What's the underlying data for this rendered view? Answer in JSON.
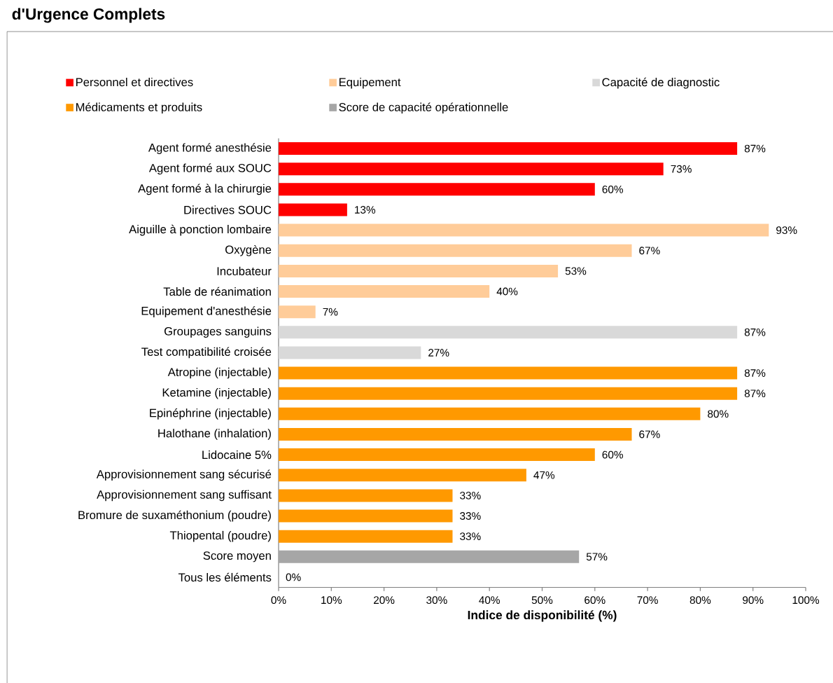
{
  "chart_data": {
    "type": "bar",
    "orientation": "horizontal",
    "title": "d'Urgence Complets",
    "xlabel": "Indice de disponibilité (%)",
    "legend": "top",
    "categories": [
      "Agent formé anesthésie",
      "Agent formé aux SOUC",
      "Agent formé à la chirurgie",
      "Directives SOUC",
      "Aiguille à ponction lombaire",
      "Oxygène",
      "Incubateur",
      "Table de réanimation",
      "Equipement d'anesthésie",
      "Groupages sanguins",
      "Test compatibilité croisée",
      "Atropine (injectable)",
      "Ketamine (injectable)",
      "Epinéphrine (injectable)",
      "Halothane (inhalation)",
      "Lidocaine 5%",
      "Approvisionnement sang sécurisé",
      "Approvisionnement sang suffisant",
      "Bromure de suxaméthonium (poudre)",
      "Thiopental (poudre)",
      "Score moyen",
      "Tous les éléments"
    ],
    "series": [
      {
        "name": "Personnel et directives",
        "color": "#ff0000",
        "values": [
          87,
          73,
          60,
          13,
          null,
          null,
          null,
          null,
          null,
          null,
          null,
          null,
          null,
          null,
          null,
          null,
          null,
          null,
          null,
          null,
          null,
          null
        ],
        "value_labels": [
          "87%",
          "73%",
          "60%",
          "13%",
          null,
          null,
          null,
          null,
          null,
          null,
          null,
          null,
          null,
          null,
          null,
          null,
          null,
          null,
          null,
          null,
          null,
          null
        ]
      },
      {
        "name": "Equipement",
        "color": "#ffcc99",
        "values": [
          null,
          null,
          null,
          null,
          93,
          67,
          53,
          40,
          7,
          null,
          null,
          null,
          null,
          null,
          null,
          null,
          null,
          null,
          null,
          null,
          null,
          null
        ],
        "value_labels": [
          null,
          null,
          null,
          null,
          "93%",
          "67%",
          "53%",
          "40%",
          "7%",
          null,
          null,
          null,
          null,
          null,
          null,
          null,
          null,
          null,
          null,
          null,
          null,
          null
        ]
      },
      {
        "name": "Capacité de diagnostic",
        "color": "#d9d9d9",
        "values": [
          null,
          null,
          null,
          null,
          null,
          null,
          null,
          null,
          null,
          87,
          27,
          null,
          null,
          null,
          null,
          null,
          null,
          null,
          null,
          null,
          null,
          null
        ],
        "value_labels": [
          null,
          null,
          null,
          null,
          null,
          null,
          null,
          null,
          null,
          "87%",
          "27%",
          null,
          null,
          null,
          null,
          null,
          null,
          null,
          null,
          null,
          null,
          null
        ]
      },
      {
        "name": "Médicaments et produits",
        "color": "#ff9900",
        "values": [
          null,
          null,
          null,
          null,
          null,
          null,
          null,
          null,
          null,
          null,
          null,
          87,
          87,
          80,
          67,
          60,
          47,
          33,
          33,
          33,
          null,
          null
        ],
        "value_labels": [
          null,
          null,
          null,
          null,
          null,
          null,
          null,
          null,
          null,
          null,
          null,
          "87%",
          "87%",
          "80%",
          "67%",
          "60%",
          "47%",
          "33%",
          "33%",
          "33%",
          null,
          null
        ]
      },
      {
        "name": "Score de capacité opérationnelle",
        "color": "#a6a6a6",
        "values": [
          null,
          null,
          null,
          null,
          null,
          null,
          null,
          null,
          null,
          null,
          null,
          null,
          null,
          null,
          null,
          null,
          null,
          null,
          null,
          null,
          57,
          0
        ],
        "value_labels": [
          null,
          null,
          null,
          null,
          null,
          null,
          null,
          null,
          null,
          null,
          null,
          null,
          null,
          null,
          null,
          null,
          null,
          null,
          null,
          null,
          "57%",
          "0%"
        ]
      }
    ],
    "xlim": [
      0,
      100
    ],
    "xticks": [
      {
        "value": 0,
        "label": "0%"
      },
      {
        "value": 10,
        "label": "10%"
      },
      {
        "value": 20,
        "label": "20%"
      },
      {
        "value": 30,
        "label": "30%"
      },
      {
        "value": 40,
        "label": "40%"
      },
      {
        "value": 50,
        "label": "50%"
      },
      {
        "value": 60,
        "label": "60%"
      },
      {
        "value": 70,
        "label": "70%"
      },
      {
        "value": 80,
        "label": "80%"
      },
      {
        "value": 90,
        "label": "90%"
      },
      {
        "value": 100,
        "label": "100%"
      }
    ]
  }
}
